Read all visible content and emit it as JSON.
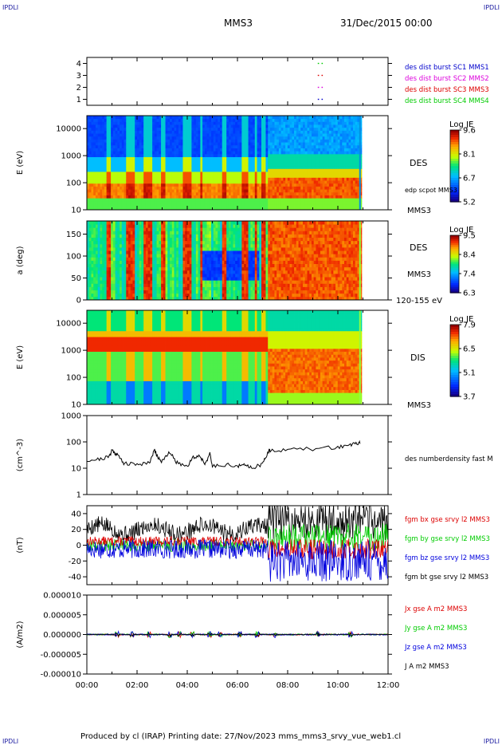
{
  "corners": {
    "tl": "IPDLI",
    "tr": "IPDLI",
    "bl": "IPDLI",
    "br": "IPDLI"
  },
  "header": {
    "mission": "MMS3",
    "datetime": "31/Dec/2015 00:00"
  },
  "footer": {
    "text": "Produced by cl (IRAP)   Printing date: 27/Nov/2023   mms_mms3_srvy_vue_web1.cl"
  },
  "chart_data": [
    {
      "type": "scatter",
      "id": "burst",
      "ylim": [
        0.5,
        4.5
      ],
      "yticks": [
        "1",
        "2",
        "3",
        "4"
      ],
      "series": [
        {
          "name": "des dist burst SC1 MMS1",
          "color": "#0000cc",
          "points": [
            [
              9.2,
              1
            ],
            [
              9.35,
              1
            ]
          ]
        },
        {
          "name": "des dist burst SC2 MMS2",
          "color": "#dd00dd",
          "points": [
            [
              9.2,
              2
            ],
            [
              9.35,
              2
            ]
          ]
        },
        {
          "name": "des dist burst SC3 MMS3",
          "color": "#dd0000",
          "points": [
            [
              9.2,
              3
            ],
            [
              9.35,
              3
            ]
          ]
        },
        {
          "name": "des dist burst SC4 MMS4",
          "color": "#00cc00",
          "points": [
            [
              9.2,
              4
            ],
            [
              9.35,
              4
            ]
          ]
        }
      ]
    },
    {
      "type": "heatmap",
      "id": "des_e",
      "ylabel": "E (eV)",
      "scale": "log",
      "ylim": [
        10,
        30000
      ],
      "yticks": [
        "10",
        "100",
        "1000",
        "10000"
      ],
      "right_labels": [
        "DES",
        "edp scpot MMS3",
        "MMS3"
      ],
      "colorbar": {
        "title": "Log JE",
        "ticks": [
          "9.6",
          "8.1",
          "6.7",
          "5.2"
        ]
      }
    },
    {
      "type": "heatmap",
      "id": "des_pa",
      "ylabel": "a (deg)",
      "ylim": [
        0,
        180
      ],
      "yticks": [
        "0",
        "50",
        "100",
        "150"
      ],
      "right_labels": [
        "DES",
        "MMS3",
        "120-155 eV"
      ],
      "colorbar": {
        "title": "Log JE",
        "ticks": [
          "9.5",
          "8.4",
          "7.4",
          "6.3"
        ]
      }
    },
    {
      "type": "heatmap",
      "id": "dis_e",
      "ylabel": "E (eV)",
      "scale": "log",
      "ylim": [
        10,
        30000
      ],
      "yticks": [
        "10",
        "100",
        "1000",
        "10000"
      ],
      "right_labels": [
        "DIS",
        "MMS3"
      ],
      "colorbar": {
        "title": "Log JE",
        "ticks": [
          "7.9",
          "6.5",
          "5.1",
          "3.7"
        ]
      }
    },
    {
      "type": "line",
      "id": "dens",
      "ylabel": "(cm^-3)",
      "scale": "log",
      "ylim": [
        1,
        1000
      ],
      "yticks": [
        "1",
        "10",
        "100",
        "1000"
      ],
      "series": [
        {
          "name": "des numberdensity fast M",
          "color": "#000000"
        }
      ],
      "x": [
        0,
        0.5,
        0.9,
        1.0,
        1.1,
        1.25,
        1.5,
        2.0,
        2.5,
        2.7,
        2.8,
        3.0,
        3.3,
        3.6,
        4.0,
        4.2,
        4.5,
        4.7,
        4.9,
        5.0,
        5.5,
        6.0,
        6.3,
        6.6,
        7.0,
        7.2,
        7.3,
        8.0,
        9.0,
        10.0,
        10.5,
        10.8,
        10.9
      ],
      "y": [
        20,
        22,
        28,
        50,
        40,
        30,
        15,
        14,
        17,
        50,
        30,
        18,
        40,
        16,
        12,
        25,
        30,
        15,
        35,
        12,
        14,
        12,
        13,
        11,
        14,
        40,
        50,
        50,
        55,
        63,
        80,
        85,
        100
      ]
    },
    {
      "type": "line",
      "id": "fgm",
      "ylabel": "(nT)",
      "ylim": [
        -50,
        50
      ],
      "yticks": [
        "-40",
        "-20",
        "0",
        "20",
        "40"
      ],
      "series": [
        {
          "name": "fgm bx gse srvy l2 MMS3",
          "color": "#dd0000"
        },
        {
          "name": "fgm by gse srvy l2 MMS3",
          "color": "#00cc00"
        },
        {
          "name": "fgm bz gse srvy l2 MMS3",
          "color": "#0000dd"
        },
        {
          "name": "fgm bt gse srvy l2 MMS3",
          "color": "#000000"
        }
      ]
    },
    {
      "type": "line",
      "id": "curr",
      "ylabel": "(A/m2)",
      "ylim": [
        -1e-05,
        1e-05
      ],
      "yticks": [
        "-0.000010",
        "-0.000005",
        "0.000000",
        "0.000005",
        "0.000010"
      ],
      "series": [
        {
          "name": "Jx gse A m2 MMS3",
          "color": "#dd0000"
        },
        {
          "name": "Jy gse A m2 MMS3",
          "color": "#00cc00"
        },
        {
          "name": "Jz gse A m2 MMS3",
          "color": "#0000dd"
        },
        {
          "name": "J A m2 MMS3",
          "color": "#000000"
        }
      ],
      "xticks": [
        "00:00",
        "02:00",
        "04:00",
        "06:00",
        "08:00",
        "10:00",
        "12:00"
      ],
      "xlim": [
        0,
        12
      ]
    }
  ]
}
